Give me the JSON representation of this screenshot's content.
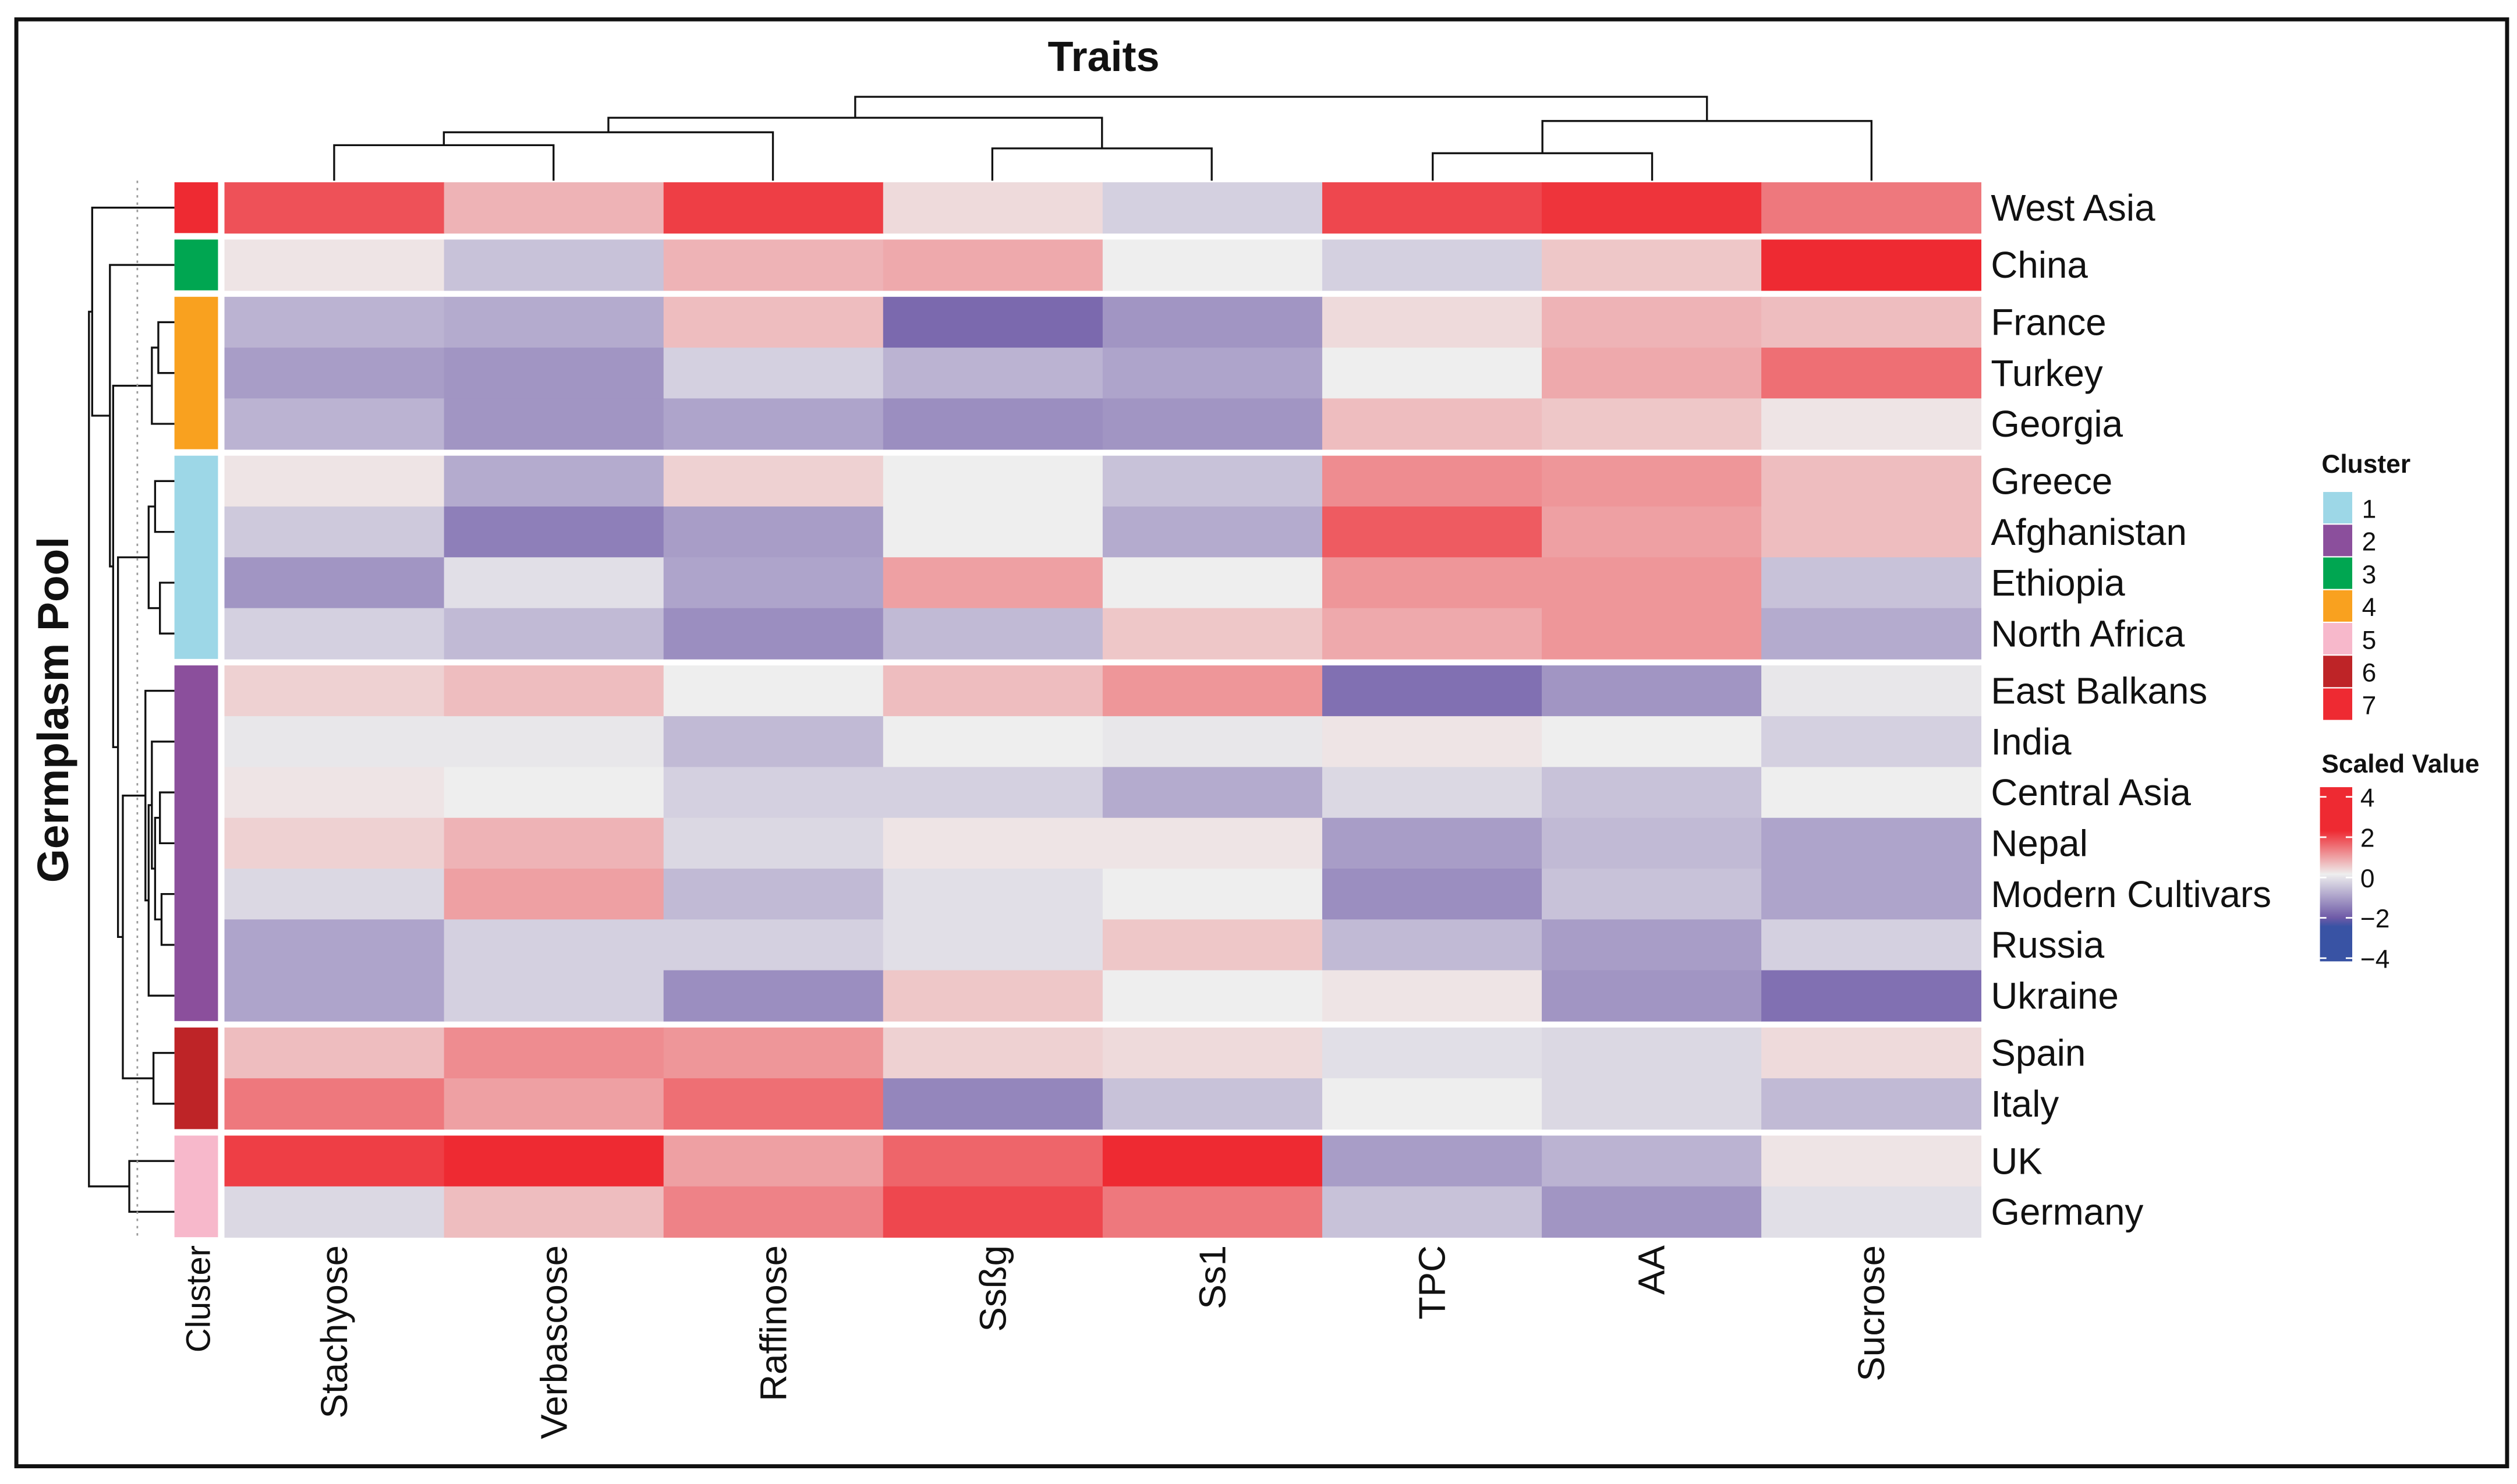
{
  "chart_data": {
    "type": "heatmap",
    "title": "Traits",
    "ylabel": "Germplasm Pool",
    "cluster_axis_label": "Cluster",
    "columns": [
      "Stachyose",
      "Verbascose",
      "Raffinose",
      "Ssßg",
      "Ss1",
      "TPC",
      "AA",
      "Sucrose"
    ],
    "rows": [
      "West Asia",
      "China",
      "France",
      "Turkey",
      "Georgia",
      "Greece",
      "Afghanistan",
      "Ethiopia",
      "North Africa",
      "East Balkans",
      "India",
      "Central Asia",
      "Nepal",
      "Modern Cultivars",
      "Russia",
      "Ukraine",
      "Spain",
      "Italy",
      "UK",
      "Germany"
    ],
    "row_clusters": [
      7,
      3,
      4,
      4,
      4,
      1,
      1,
      1,
      1,
      2,
      2,
      2,
      2,
      2,
      2,
      2,
      6,
      6,
      5,
      5
    ],
    "values": [
      [
        1.6,
        0.6,
        1.8,
        0.2,
        -0.4,
        1.7,
        1.9,
        1.2
      ],
      [
        0.1,
        -0.6,
        0.6,
        0.7,
        0.0,
        -0.4,
        0.4,
        2.2
      ],
      [
        -0.8,
        -0.9,
        0.5,
        -1.8,
        -1.2,
        0.2,
        0.6,
        0.5
      ],
      [
        -1.1,
        -1.2,
        -0.4,
        -0.8,
        -1.0,
        0.0,
        0.7,
        1.3
      ],
      [
        -0.8,
        -1.2,
        -1.0,
        -1.3,
        -1.2,
        0.5,
        0.4,
        0.1
      ],
      [
        0.1,
        -0.9,
        0.3,
        0.0,
        -0.6,
        1.0,
        0.9,
        0.5
      ],
      [
        -0.5,
        -1.5,
        -1.1,
        0.0,
        -0.9,
        1.5,
        0.8,
        0.5
      ],
      [
        -1.2,
        -0.2,
        -1.0,
        0.8,
        0.0,
        0.9,
        0.9,
        -0.6
      ],
      [
        -0.4,
        -0.7,
        -1.3,
        -0.7,
        0.4,
        0.7,
        0.9,
        -0.9
      ],
      [
        0.3,
        0.5,
        0.0,
        0.5,
        0.9,
        -1.7,
        -1.2,
        -0.1
      ],
      [
        -0.1,
        -0.1,
        -0.7,
        0.0,
        -0.1,
        0.1,
        0.0,
        -0.4
      ],
      [
        0.1,
        0.0,
        -0.4,
        -0.4,
        -0.9,
        -0.3,
        -0.6,
        0.0
      ],
      [
        0.3,
        0.6,
        -0.3,
        0.1,
        0.1,
        -1.1,
        -0.7,
        -1.0
      ],
      [
        -0.3,
        0.8,
        -0.7,
        -0.2,
        0.0,
        -1.3,
        -0.6,
        -1.0
      ],
      [
        -1.0,
        -0.4,
        -0.4,
        -0.2,
        0.4,
        -0.7,
        -1.1,
        -0.4
      ],
      [
        -1.0,
        -0.4,
        -1.3,
        0.4,
        0.0,
        0.1,
        -1.2,
        -1.7
      ],
      [
        0.5,
        1.0,
        0.9,
        0.3,
        0.2,
        -0.2,
        -0.3,
        0.2
      ],
      [
        1.2,
        0.8,
        1.3,
        -1.4,
        -0.6,
        0.0,
        -0.3,
        -0.7
      ],
      [
        1.8,
        2.2,
        0.8,
        1.4,
        2.2,
        -1.1,
        -0.8,
        0.1
      ],
      [
        -0.3,
        0.5,
        1.1,
        1.7,
        1.2,
        -0.6,
        -1.2,
        -0.2
      ]
    ],
    "legend_cluster": {
      "title": "Cluster",
      "labels": [
        "1",
        "2",
        "3",
        "4",
        "5",
        "6",
        "7"
      ],
      "colors": [
        "#9DD7E7",
        "#8B4F9C",
        "#00A651",
        "#F9A11F",
        "#F7B8CB",
        "#BE2427",
        "#EE2A32"
      ]
    },
    "legend_scale": {
      "title": "Scaled Value",
      "ticks": [
        "4",
        "2",
        "0",
        "−2",
        "−4"
      ],
      "range": [
        -4,
        4
      ],
      "colors": {
        "high": "#EE2A32",
        "mid": "#EEEEEE",
        "low_mid": "#6E5AA7",
        "low": "#3953A4"
      }
    },
    "legend_placement": "right"
  }
}
